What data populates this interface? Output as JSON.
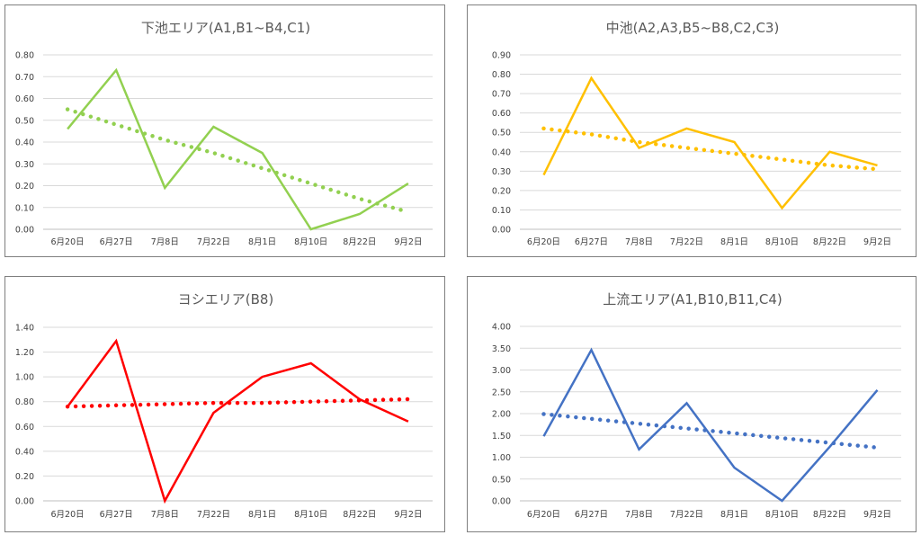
{
  "chart_data": [
    {
      "type": "line",
      "title": "下池エリア(A1,B1~B4,C1)",
      "categories": [
        "6月20日",
        "6月27日",
        "7月8日",
        "7月22日",
        "8月1日",
        "8月10日",
        "8月22日",
        "9月2日"
      ],
      "series": [
        {
          "values": [
            0.46,
            0.73,
            0.19,
            0.47,
            0.35,
            0.0,
            0.07,
            0.21
          ],
          "color": "#92d050"
        },
        {
          "values": [
            0.55,
            0.48,
            0.41,
            0.35,
            0.28,
            0.21,
            0.14,
            0.08
          ],
          "color": "#92d050",
          "style": "dotted",
          "trendline": true
        }
      ],
      "y_ticks": [
        "0.00",
        "0.10",
        "0.20",
        "0.30",
        "0.40",
        "0.50",
        "0.60",
        "0.70",
        "0.80"
      ],
      "ylim": [
        0,
        0.8
      ],
      "grid": true
    },
    {
      "type": "line",
      "title": "中池(A2,A3,B5~B8,C2,C3)",
      "categories": [
        "6月20日",
        "6月27日",
        "7月8日",
        "7月22日",
        "8月1日",
        "8月10日",
        "8月22日",
        "9月2日"
      ],
      "series": [
        {
          "values": [
            0.28,
            0.78,
            0.42,
            0.52,
            0.45,
            0.11,
            0.4,
            0.33
          ],
          "color": "#ffc000"
        },
        {
          "values": [
            0.52,
            0.49,
            0.45,
            0.42,
            0.39,
            0.36,
            0.33,
            0.31
          ],
          "color": "#ffc000",
          "style": "dotted",
          "trendline": true
        }
      ],
      "y_ticks": [
        "0.00",
        "0.10",
        "0.20",
        "0.30",
        "0.40",
        "0.50",
        "0.60",
        "0.70",
        "0.80",
        "0.90"
      ],
      "ylim": [
        0,
        0.9
      ],
      "grid": true
    },
    {
      "type": "line",
      "title": "ヨシエリア(B8)",
      "categories": [
        "6月20日",
        "6月27日",
        "7月8日",
        "7月22日",
        "8月1日",
        "8月10日",
        "8月22日",
        "9月2日"
      ],
      "series": [
        {
          "values": [
            0.76,
            1.29,
            0.0,
            0.71,
            1.0,
            1.11,
            0.82,
            0.64
          ],
          "color": "#ff0000"
        },
        {
          "values": [
            0.76,
            0.77,
            0.78,
            0.79,
            0.79,
            0.8,
            0.81,
            0.82
          ],
          "color": "#ff0000",
          "style": "dotted",
          "trendline": true
        }
      ],
      "y_ticks": [
        "0.00",
        "0.20",
        "0.40",
        "0.60",
        "0.80",
        "1.00",
        "1.20",
        "1.40"
      ],
      "ylim": [
        0,
        1.4
      ],
      "grid": true
    },
    {
      "type": "line",
      "title": "上流エリア(A1,B10,B11,C4)",
      "categories": [
        "6月20日",
        "6月27日",
        "7月8日",
        "7月22日",
        "8月1日",
        "8月10日",
        "8月22日",
        "9月2日"
      ],
      "series": [
        {
          "values": [
            1.48,
            3.46,
            1.18,
            2.24,
            0.76,
            0.0,
            1.24,
            2.54
          ],
          "color": "#4472c4"
        },
        {
          "values": [
            1.99,
            1.88,
            1.77,
            1.66,
            1.55,
            1.44,
            1.33,
            1.22
          ],
          "color": "#4472c4",
          "style": "dotted",
          "trendline": true
        }
      ],
      "y_ticks": [
        "0.00",
        "0.50",
        "1.00",
        "1.50",
        "2.00",
        "2.50",
        "3.00",
        "3.50",
        "4.00"
      ],
      "ylim": [
        0,
        4.0
      ],
      "grid": true
    }
  ]
}
